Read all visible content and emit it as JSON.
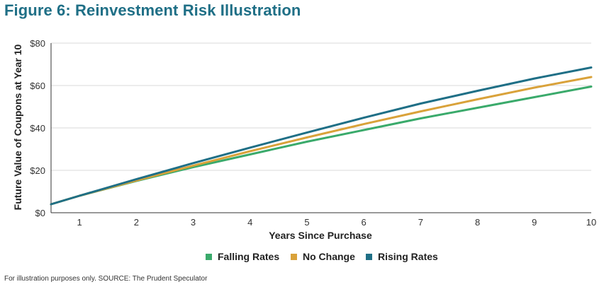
{
  "title": "Figure 6: Reinvestment Risk Illustration",
  "footer": "For illustration purposes only. SOURCE: The Prudent Speculator",
  "chart_data": {
    "type": "line",
    "title": "Figure 6: Reinvestment Risk Illustration",
    "xlabel": "Years Since Purchase",
    "ylabel": "Future Value of Coupons at Year 10",
    "x": [
      0.5,
      1,
      2,
      3,
      4,
      5,
      6,
      7,
      8,
      9,
      10
    ],
    "xticks": [
      "1",
      "2",
      "3",
      "4",
      "5",
      "6",
      "7",
      "8",
      "9",
      "10"
    ],
    "xlim": [
      0.5,
      10
    ],
    "ylim": [
      0,
      80
    ],
    "yticks": [
      "$0",
      "$20",
      "$40",
      "$60",
      "$80"
    ],
    "grid": true,
    "legend": "bottom",
    "series": [
      {
        "name": "Falling Rates",
        "color": "#3aaa6b",
        "values": [
          4,
          8,
          15,
          21.5,
          27.5,
          33.5,
          39,
          44.5,
          49.5,
          54.5,
          59.5
        ]
      },
      {
        "name": "No Change",
        "color": "#d9a23a",
        "values": [
          4,
          8,
          15.2,
          22.2,
          29,
          35.5,
          41.8,
          47.8,
          53.5,
          59,
          64
        ]
      },
      {
        "name": "Rising Rates",
        "color": "#1f6f86",
        "values": [
          4,
          8,
          15.8,
          23.4,
          30.7,
          37.8,
          44.8,
          51.5,
          57.5,
          63.3,
          68.5
        ]
      }
    ]
  }
}
